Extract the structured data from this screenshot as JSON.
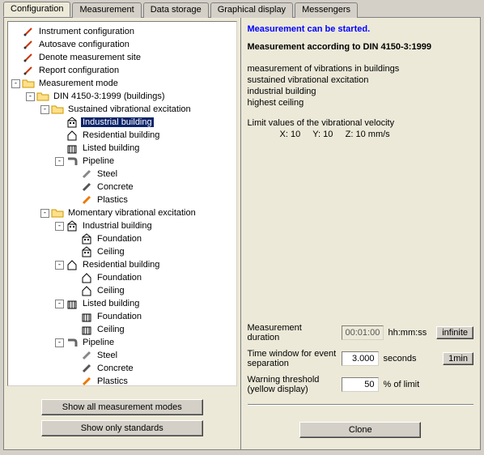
{
  "tabs": [
    {
      "label": "Configuration",
      "active": true
    },
    {
      "label": "Measurement",
      "active": false
    },
    {
      "label": "Data storage",
      "active": false
    },
    {
      "label": "Graphical display",
      "active": false
    },
    {
      "label": "Messengers",
      "active": false
    }
  ],
  "tree": [
    {
      "indent": 0,
      "expander": null,
      "icon": "pencil-red",
      "label": "Instrument configuration",
      "selected": false,
      "interactable": true
    },
    {
      "indent": 0,
      "expander": null,
      "icon": "pencil-red",
      "label": "Autosave configuration",
      "selected": false,
      "interactable": true
    },
    {
      "indent": 0,
      "expander": null,
      "icon": "pencil-red",
      "label": "Denote measurement site",
      "selected": false,
      "interactable": true
    },
    {
      "indent": 0,
      "expander": null,
      "icon": "pencil-red",
      "label": "Report configuration",
      "selected": false,
      "interactable": true
    },
    {
      "indent": 0,
      "expander": "-",
      "icon": "folder-open",
      "label": "Measurement mode",
      "selected": false,
      "interactable": true
    },
    {
      "indent": 1,
      "expander": "-",
      "icon": "folder-open",
      "label": "DIN 4150-3:1999 (buildings)",
      "selected": false,
      "interactable": true
    },
    {
      "indent": 2,
      "expander": "-",
      "icon": "folder-open",
      "label": "Sustained vibrational excitation",
      "selected": false,
      "interactable": true
    },
    {
      "indent": 3,
      "expander": null,
      "icon": "building",
      "label": "Industrial building",
      "selected": true,
      "interactable": true
    },
    {
      "indent": 3,
      "expander": null,
      "icon": "house",
      "label": "Residential building",
      "selected": false,
      "interactable": true
    },
    {
      "indent": 3,
      "expander": null,
      "icon": "listed",
      "label": "Listed building",
      "selected": false,
      "interactable": true
    },
    {
      "indent": 3,
      "expander": "-",
      "icon": "pipe",
      "label": "Pipeline",
      "selected": false,
      "interactable": true
    },
    {
      "indent": 4,
      "expander": null,
      "icon": "steel",
      "label": "Steel",
      "selected": false,
      "interactable": true
    },
    {
      "indent": 4,
      "expander": null,
      "icon": "concrete",
      "label": "Concrete",
      "selected": false,
      "interactable": true
    },
    {
      "indent": 4,
      "expander": null,
      "icon": "plastics",
      "label": "Plastics",
      "selected": false,
      "interactable": true
    },
    {
      "indent": 2,
      "expander": "-",
      "icon": "folder-open",
      "label": "Momentary vibrational excitation",
      "selected": false,
      "interactable": true
    },
    {
      "indent": 3,
      "expander": "-",
      "icon": "building",
      "label": "Industrial building",
      "selected": false,
      "interactable": true
    },
    {
      "indent": 4,
      "expander": null,
      "icon": "building",
      "label": "Foundation",
      "selected": false,
      "interactable": true
    },
    {
      "indent": 4,
      "expander": null,
      "icon": "building",
      "label": "Ceiling",
      "selected": false,
      "interactable": true
    },
    {
      "indent": 3,
      "expander": "-",
      "icon": "house",
      "label": "Residential building",
      "selected": false,
      "interactable": true
    },
    {
      "indent": 4,
      "expander": null,
      "icon": "house",
      "label": "Foundation",
      "selected": false,
      "interactable": true
    },
    {
      "indent": 4,
      "expander": null,
      "icon": "house",
      "label": "Ceiling",
      "selected": false,
      "interactable": true
    },
    {
      "indent": 3,
      "expander": "-",
      "icon": "listed",
      "label": "Listed building",
      "selected": false,
      "interactable": true
    },
    {
      "indent": 4,
      "expander": null,
      "icon": "listed",
      "label": "Foundation",
      "selected": false,
      "interactable": true
    },
    {
      "indent": 4,
      "expander": null,
      "icon": "listed",
      "label": "Ceiling",
      "selected": false,
      "interactable": true
    },
    {
      "indent": 3,
      "expander": "-",
      "icon": "pipe",
      "label": "Pipeline",
      "selected": false,
      "interactable": true
    },
    {
      "indent": 4,
      "expander": null,
      "icon": "steel",
      "label": "Steel",
      "selected": false,
      "interactable": true
    },
    {
      "indent": 4,
      "expander": null,
      "icon": "concrete",
      "label": "Concrete",
      "selected": false,
      "interactable": true
    },
    {
      "indent": 4,
      "expander": null,
      "icon": "plastics",
      "label": "Plastics",
      "selected": false,
      "interactable": true
    }
  ],
  "leftButtons": {
    "showAll": "Show all measurement modes",
    "showStd": "Show only standards"
  },
  "right": {
    "status": "Measurement can be started.",
    "title": "Measurement according to DIN 4150-3:1999",
    "descLines": [
      "measurement of vibrations in buildings",
      "sustained vibrational excitation",
      "industrial building",
      "highest ceiling"
    ],
    "limitsLabel": "Limit values of the vibrational velocity",
    "limits": {
      "x": "X: 10",
      "y": "Y: 10",
      "z": "Z: 10 mm/s"
    },
    "durationLabel": "Measurement duration",
    "durationValue": "00:01:00",
    "durationUnit": "hh:mm:ss",
    "infinite": "infinite",
    "windowLabel1": "Time window for event",
    "windowLabel2": "separation",
    "windowValue": "3.000",
    "windowUnit": "seconds",
    "oneMin": "1min",
    "warnLabel1": "Warning threshold",
    "warnLabel2": "(yellow display)",
    "warnValue": "50",
    "warnUnit": "% of limit",
    "clone": "Clone"
  },
  "icons": {
    "pencil-red": "<svg width='14' height='14' viewBox='0 0 14 14'><line x1='3' y1='11' x2='11' y2='3' stroke='#cc3300' stroke-width='2'/><circle cx='3' cy='11' r='1.5' fill='#333'/></svg>",
    "folder-open": "<svg width='16' height='14' viewBox='0 0 16 14'><path d='M1 3h5l1 2h8v7H1z' fill='#ffe08a' stroke='#cc9900'/></svg>",
    "building": "<svg width='14' height='14' viewBox='0 0 14 14'><rect x='2' y='5' width='10' height='8' fill='none' stroke='#000'/><rect x='4' y='7' width='2' height='2' fill='#000'/><rect x='8' y='7' width='2' height='2' fill='#000'/><path d='M2 5 L7 1 L12 5' fill='none' stroke='#000'/></svg>",
    "house": "<svg width='14' height='14' viewBox='0 0 14 14'><path d='M2 7 L7 2 L12 7 V13 H2 Z' fill='none' stroke='#000'/></svg>",
    "listed": "<svg width='14' height='14' viewBox='0 0 14 14'><rect x='2' y='4' width='10' height='9' fill='none' stroke='#000'/><line x1='4' y1='4' x2='4' y2='13' stroke='#000'/><line x1='7' y1='4' x2='7' y2='13' stroke='#000'/><line x1='10' y1='4' x2='10' y2='13' stroke='#000'/></svg>",
    "pipe": "<svg width='14' height='14' viewBox='0 0 14 14'><path d='M2 4 H9 Q12 4 12 7 V12' fill='none' stroke='#666' stroke-width='3'/></svg>",
    "steel": "<svg width='14' height='14' viewBox='0 0 14 14'><line x1='3' y1='11' x2='11' y2='3' stroke='#888' stroke-width='3'/></svg>",
    "concrete": "<svg width='14' height='14' viewBox='0 0 14 14'><line x1='3' y1='11' x2='11' y2='3' stroke='#555' stroke-width='3'/></svg>",
    "plastics": "<svg width='14' height='14' viewBox='0 0 14 14'><line x1='3' y1='11' x2='11' y2='3' stroke='#ee7700' stroke-width='3'/></svg>"
  },
  "colors": {
    "background": "#d4d0c8",
    "panel": "#ece9d8",
    "selectionBg": "#0a246a",
    "selectionFg": "#ffffff",
    "statusText": "#0000ff"
  }
}
